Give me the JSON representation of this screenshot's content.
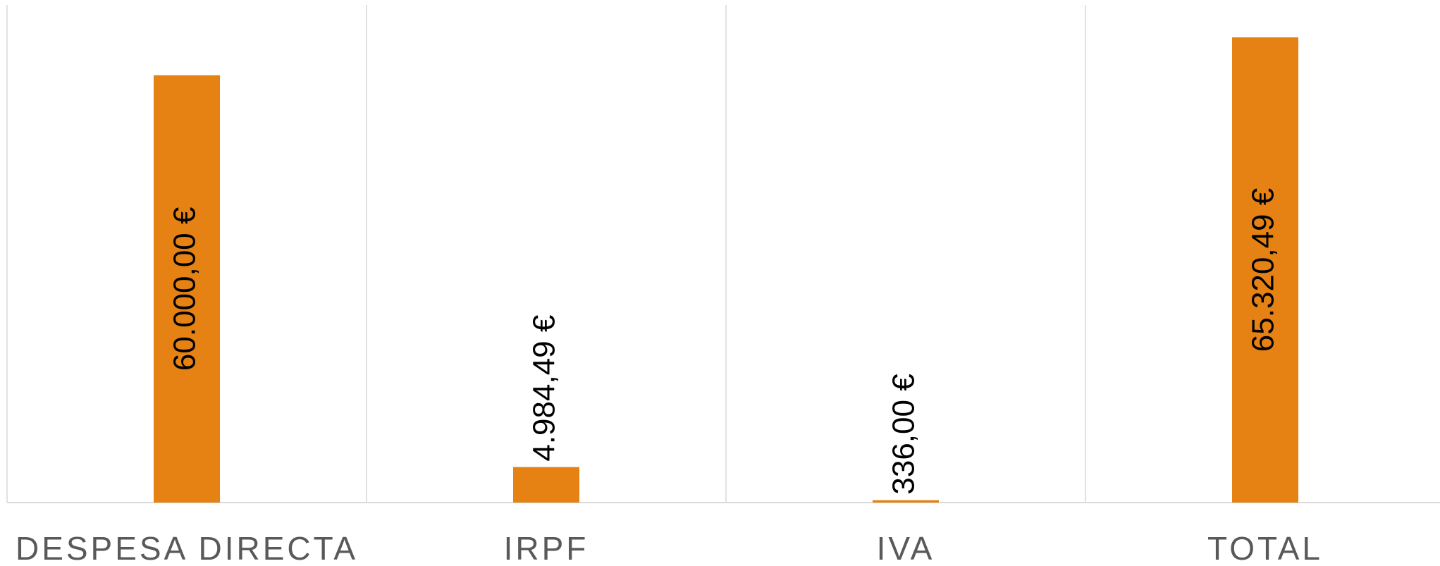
{
  "chart_data": {
    "type": "bar",
    "categories": [
      "DESPESA DIRECTA",
      "IRPF",
      "IVA",
      "TOTAL"
    ],
    "values": [
      60000,
      4984.49,
      336,
      65320.49
    ],
    "value_labels": [
      "60.000,00 €",
      "4.984,49 €",
      "336,00 €",
      "65.320,49 €"
    ],
    "color": "#e58213"
  }
}
